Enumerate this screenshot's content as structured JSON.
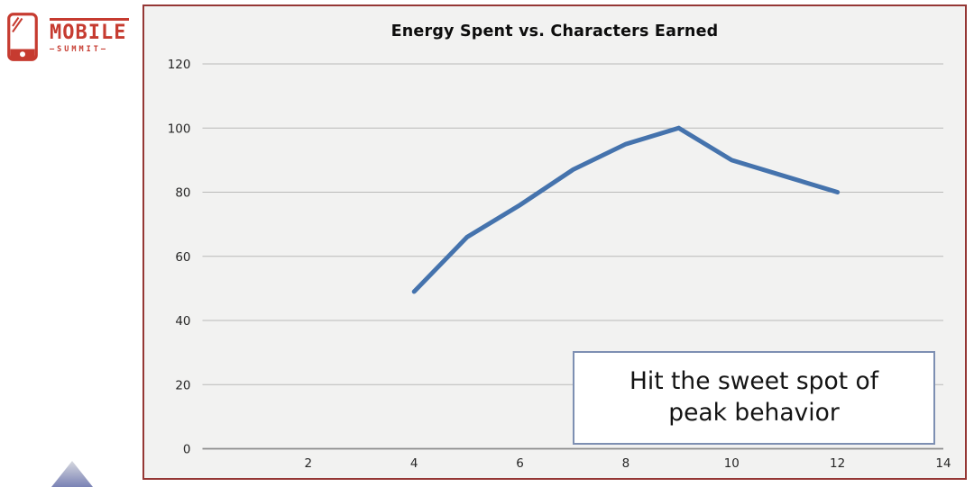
{
  "logo": {
    "name": "MOBILE",
    "tagline": "—SUMMIT—",
    "brand_color": "#c63b30"
  },
  "chart_data": {
    "type": "line",
    "title": "Energy Spent vs. Characters Earned",
    "x": [
      4,
      5,
      6,
      7,
      8,
      9,
      10,
      11,
      12
    ],
    "y": [
      49,
      66,
      76,
      87,
      95,
      100,
      90,
      85,
      80
    ],
    "xlim": [
      0,
      14
    ],
    "ylim": [
      0,
      120
    ],
    "x_ticks": [
      2,
      4,
      6,
      8,
      10,
      12,
      14
    ],
    "y_ticks": [
      0,
      20,
      40,
      60,
      80,
      100,
      120
    ],
    "xlabel": "",
    "ylabel": "",
    "grid": true,
    "legend": null,
    "line_color": "#4573ad",
    "annotation": "Hit the sweet spot of peak behavior"
  },
  "callout": {
    "lines": [
      "Hit the sweet spot of",
      "peak behavior"
    ]
  },
  "colors": {
    "frame_border": "#953735",
    "chart_bg": "#f2f2f1",
    "gridline": "#b9b9b9",
    "axis_line": "#8c8c8c",
    "tick_text": "#262626",
    "callout_border": "#7d8fb2",
    "triangle_top": "#d6d8df",
    "triangle_bottom": "#7a82b5"
  }
}
